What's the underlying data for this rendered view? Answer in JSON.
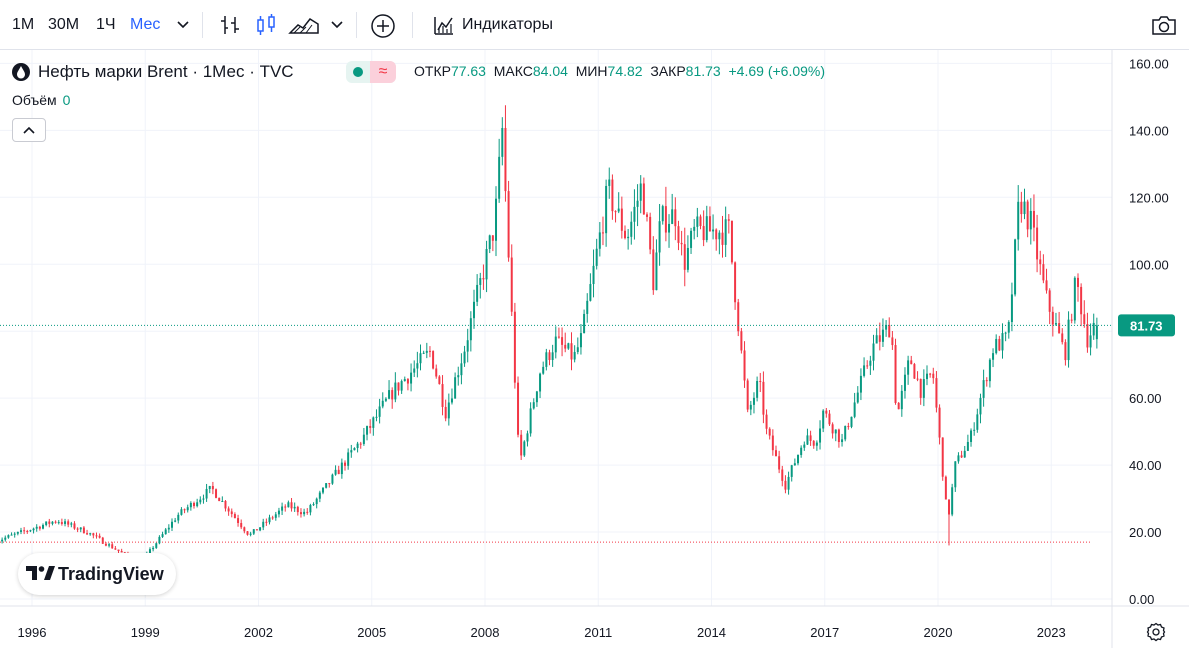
{
  "toolbar": {
    "intervals": [
      "1М",
      "30М",
      "1Ч",
      "Мес"
    ],
    "active_interval": "Мес",
    "indicators_label": "Индикаторы",
    "icons": [
      "chevron-down-icon",
      "bars-icon",
      "candles-icon",
      "area-icon",
      "chevron-down-icon",
      "add-compare-icon",
      "indicators-icon",
      "camera-icon"
    ]
  },
  "legend": {
    "title": "Нефть марки Brent · 1Мес · TVC",
    "open_label": "ОТКР",
    "open": "77.63",
    "high_label": "МАКС",
    "high": "84.04",
    "low_label": "МИН",
    "low": "74.82",
    "close_label": "ЗАКР",
    "close": "81.73",
    "change": "+4.69 (+6.09%)",
    "volume_label": "Объём",
    "volume": "0",
    "wave_symbol": "≈"
  },
  "branding": {
    "logo_text": "TradingView"
  },
  "colors": {
    "up": "#089981",
    "down": "#f23645",
    "accent": "#2962ff"
  },
  "chart_data": {
    "type": "candlestick",
    "title": "Нефть марки Brent · 1Мес · TVC",
    "interval": "1M",
    "y_axis": {
      "min": 0,
      "max": 160,
      "ticks": [
        "0.00",
        "20.00",
        "40.00",
        "60.00",
        "80.00",
        "100.00",
        "120.00",
        "140.00",
        "160.00"
      ]
    },
    "x_axis": {
      "ticks": [
        "1996",
        "1999",
        "2002",
        "2005",
        "2008",
        "2011",
        "2014",
        "2017",
        "2020",
        "2023"
      ]
    },
    "last_price": "81.73",
    "reference_line": 17,
    "anchors": [
      [
        1995.0,
        17.0
      ],
      [
        1996.7,
        23.5
      ],
      [
        1997.5,
        20.0
      ],
      [
        1998.9,
        10.5
      ],
      [
        1999.9,
        25.0
      ],
      [
        2000.8,
        33.0
      ],
      [
        2001.8,
        19.0
      ],
      [
        2002.8,
        28.0
      ],
      [
        2003.3,
        25.5
      ],
      [
        2004.8,
        48.0
      ],
      [
        2005.6,
        62.0
      ],
      [
        2006.6,
        74.0
      ],
      [
        2007.0,
        56.0
      ],
      [
        2007.5,
        75.0
      ],
      [
        2008.3,
        112.0
      ],
      [
        2008.5,
        140.0
      ],
      [
        2008.95,
        40.0
      ],
      [
        2009.5,
        68.0
      ],
      [
        2009.9,
        77.0
      ],
      [
        2010.4,
        72.0
      ],
      [
        2010.6,
        78.0
      ],
      [
        2011.3,
        122.0
      ],
      [
        2011.8,
        108.0
      ],
      [
        2012.2,
        124.0
      ],
      [
        2012.5,
        95.0
      ],
      [
        2012.7,
        113.0
      ],
      [
        2013.1,
        115.0
      ],
      [
        2013.3,
        100.0
      ],
      [
        2013.6,
        110.0
      ],
      [
        2014.5,
        110.0
      ],
      [
        2015.0,
        55.0
      ],
      [
        2015.3,
        65.0
      ],
      [
        2015.5,
        50.0
      ],
      [
        2016.0,
        34.0
      ],
      [
        2016.5,
        48.0
      ],
      [
        2016.8,
        47.0
      ],
      [
        2017.0,
        56.0
      ],
      [
        2017.5,
        47.0
      ],
      [
        2018.3,
        75.0
      ],
      [
        2018.8,
        82.0
      ],
      [
        2018.95,
        54.0
      ],
      [
        2019.3,
        72.0
      ],
      [
        2019.6,
        62.0
      ],
      [
        2019.9,
        68.0
      ],
      [
        2020.3,
        23.0
      ],
      [
        2020.5,
        40.0
      ],
      [
        2020.9,
        48.0
      ],
      [
        2021.5,
        75.0
      ],
      [
        2021.9,
        78.0
      ],
      [
        2022.2,
        120.0
      ],
      [
        2022.5,
        112.0
      ],
      [
        2022.9,
        90.0
      ],
      [
        2023.2,
        80.0
      ],
      [
        2023.4,
        73.0
      ],
      [
        2023.7,
        95.0
      ],
      [
        2024.0,
        78.0
      ],
      [
        2024.2,
        81.73
      ]
    ],
    "visible_extremes": {
      "max": 147.5,
      "min": 16.0
    }
  }
}
